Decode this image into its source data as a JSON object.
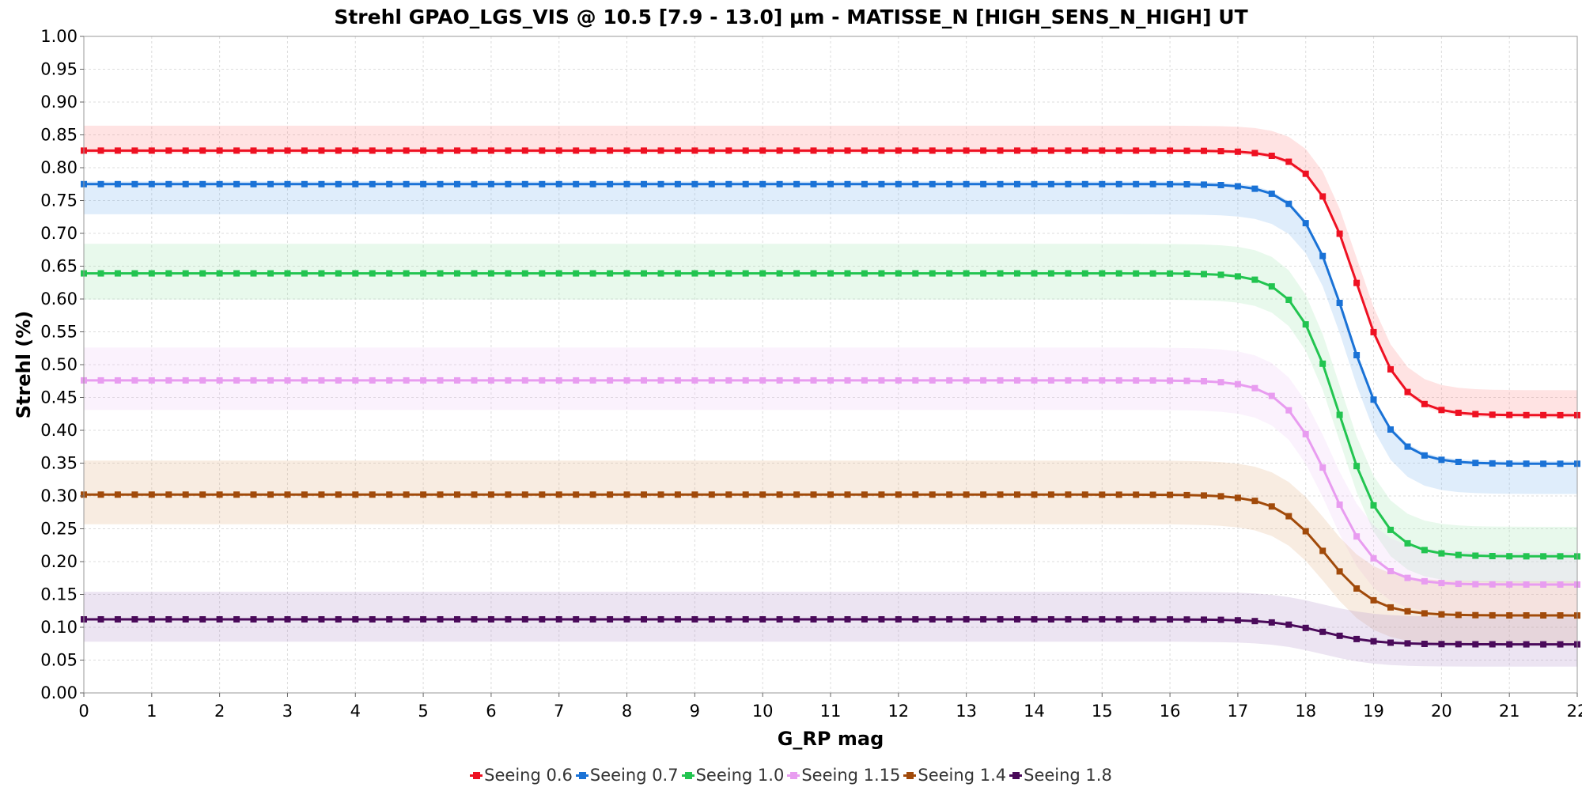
{
  "chart_data": {
    "type": "line",
    "title": "Strehl GPAO_LGS_VIS @ 10.5 [7.9 - 13.0] µm - MATISSE_N [HIGH_SENS_N_HIGH] UT",
    "xlabel": "G_RP mag",
    "ylabel": "Strehl (%)",
    "xlim": [
      0,
      22
    ],
    "ylim": [
      0,
      1
    ],
    "x_ticks": [
      "0",
      "1",
      "2",
      "3",
      "4",
      "5",
      "6",
      "7",
      "8",
      "9",
      "10",
      "11",
      "12",
      "13",
      "14",
      "15",
      "16",
      "17",
      "18",
      "19",
      "20",
      "21",
      "22"
    ],
    "y_ticks": [
      "0.00",
      "0.05",
      "0.10",
      "0.15",
      "0.20",
      "0.25",
      "0.30",
      "0.35",
      "0.40",
      "0.45",
      "0.50",
      "0.55",
      "0.60",
      "0.65",
      "0.70",
      "0.75",
      "0.80",
      "0.85",
      "0.90",
      "0.95",
      "1.00"
    ],
    "grid": true,
    "legend_position": "bottom",
    "x_step": 0.25,
    "series": [
      {
        "name": "Seeing 0.6",
        "color": "#ee1122",
        "band_color": "#ff8c8c",
        "plateau": 0.826,
        "floor": 0.423,
        "mid": 18.75,
        "width": 0.32,
        "band_hi": 0.038,
        "band_lo": 0.004
      },
      {
        "name": "Seeing 0.7",
        "color": "#1a72d6",
        "band_color": "#7ab4f0",
        "plateau": 0.775,
        "floor": 0.349,
        "mid": 18.6,
        "width": 0.33,
        "band_hi": 0.004,
        "band_lo": 0.046
      },
      {
        "name": "Seeing 1.0",
        "color": "#22c450",
        "band_color": "#9ee8b0",
        "plateau": 0.639,
        "floor": 0.208,
        "mid": 18.5,
        "width": 0.33,
        "band_hi": 0.045,
        "band_lo": 0.04
      },
      {
        "name": "Seeing 1.15",
        "color": "#e89cf0",
        "band_color": "#f0c8f8",
        "plateau": 0.476,
        "floor": 0.165,
        "mid": 18.35,
        "width": 0.34,
        "band_hi": 0.05,
        "band_lo": 0.045
      },
      {
        "name": "Seeing 1.4",
        "color": "#a14a0a",
        "band_color": "#e0b080",
        "plateau": 0.302,
        "floor": 0.118,
        "mid": 18.3,
        "width": 0.36,
        "band_hi": 0.052,
        "band_lo": 0.045
      },
      {
        "name": "Seeing 1.8",
        "color": "#4a0a5a",
        "band_color": "#b090c8",
        "plateau": 0.112,
        "floor": 0.074,
        "mid": 18.25,
        "width": 0.38,
        "band_hi": 0.042,
        "band_lo": 0.034
      }
    ]
  }
}
